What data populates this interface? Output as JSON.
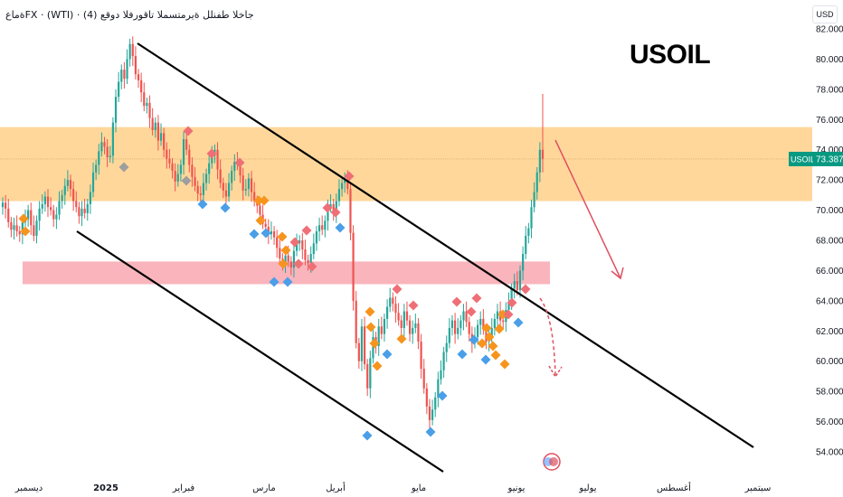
{
  "header": {
    "title": "جاخلا طفنلل ةيرمتسملا تاقورفلا دوقع (4) · FX · (WTI)ةماع",
    "symbol_big": "USOIL",
    "currency_button": "USD"
  },
  "colors": {
    "bull": "#26a69a",
    "bear": "#ef5350",
    "orange_zone": "#ffd08a",
    "pink_zone": "#f7a1ab",
    "channel_line": "#000000",
    "arrow": "#e05060",
    "marker_orange": "#f7941d",
    "marker_red": "#ef6f76",
    "marker_blue": "#4a9fe8",
    "marker_gray": "#9e9e9e",
    "price_label_bg": "#089981"
  },
  "price_label": {
    "symbol": "USOIL",
    "value": "73.387"
  },
  "chart_data": {
    "type": "candlestick",
    "y_axis": {
      "min": 53.5,
      "max": 82.2,
      "ticks": [
        "82.000",
        "80.000",
        "78.000",
        "76.000",
        "74.000",
        "72.000",
        "70.000",
        "68.000",
        "66.000",
        "64.000",
        "62.000",
        "60.000",
        "58.000",
        "56.000",
        "54.000"
      ]
    },
    "x_axis": {
      "ticks": [
        "ديسمبر",
        "2025",
        "فبراير",
        "مارس",
        "أبريل",
        "مايو",
        "يونيو",
        "يوليو",
        "أغسطس",
        "سبتمبر"
      ]
    },
    "zones": [
      {
        "name": "resistance",
        "from": 70.6,
        "to": 75.5
      },
      {
        "name": "support",
        "from": 65.1,
        "to": 66.6
      }
    ],
    "last_price": 73.387,
    "closes": [
      70.5,
      70.1,
      69.2,
      68.7,
      69.0,
      68.6,
      68.4,
      69.2,
      69.4,
      70.0,
      69.0,
      68.3,
      69.3,
      70.1,
      70.4,
      70.9,
      70.2,
      70.0,
      69.4,
      69.7,
      70.6,
      71.0,
      71.6,
      72.0,
      71.4,
      70.6,
      70.2,
      69.6,
      70.1,
      69.8,
      70.4,
      71.2,
      72.5,
      73.0,
      73.9,
      74.5,
      74.2,
      73.5,
      73.6,
      75.8,
      77.5,
      78.5,
      79.3,
      78.7,
      80.0,
      81.0,
      80.2,
      79.0,
      78.6,
      77.8,
      76.9,
      77.1,
      76.1,
      75.3,
      75.8,
      74.6,
      75.1,
      74.0,
      73.4,
      73.1,
      72.6,
      71.9,
      72.4,
      73.0,
      74.7,
      74.0,
      73.0,
      72.2,
      71.6,
      71.1,
      71.0,
      71.8,
      72.4,
      73.1,
      73.6,
      74.0,
      72.7,
      71.8,
      71.3,
      70.9,
      71.8,
      72.6,
      73.2,
      73.0,
      72.3,
      71.3,
      71.4,
      72.1,
      71.2,
      70.6,
      70.3,
      69.7,
      69.1,
      68.9,
      68.4,
      68.6,
      68.2,
      67.5,
      66.8,
      66.5,
      67.0,
      66.6,
      66.2,
      67.3,
      67.8,
      68.0,
      67.4,
      66.7,
      66.5,
      67.1,
      67.8,
      68.6,
      69.0,
      68.7,
      69.3,
      70.2,
      70.4,
      69.8,
      70.6,
      71.4,
      71.8,
      72.0,
      71.4,
      68.5,
      64.0,
      61.2,
      60.0,
      62.3,
      59.8,
      58.2,
      60.2,
      61.6,
      61.0,
      62.3,
      61.8,
      62.8,
      63.6,
      64.2,
      63.8,
      63.2,
      62.7,
      62.2,
      63.3,
      62.7,
      61.8,
      62.2,
      62.5,
      61.3,
      59.5,
      58.2,
      57.0,
      56.1,
      56.8,
      57.6,
      58.8,
      59.4,
      60.6,
      61.2,
      62.2,
      62.7,
      61.8,
      62.2,
      62.7,
      63.3,
      62.6,
      61.8,
      61.2,
      61.6,
      62.4,
      62.8,
      62.1,
      61.3,
      61.6,
      62.2,
      62.8,
      63.3,
      62.7,
      62.6,
      63.4,
      63.9,
      64.8,
      65.3,
      64.7,
      66.0,
      67.1,
      68.3,
      68.8,
      70.2,
      71.2,
      72.5,
      74.0,
      73.4
    ]
  }
}
